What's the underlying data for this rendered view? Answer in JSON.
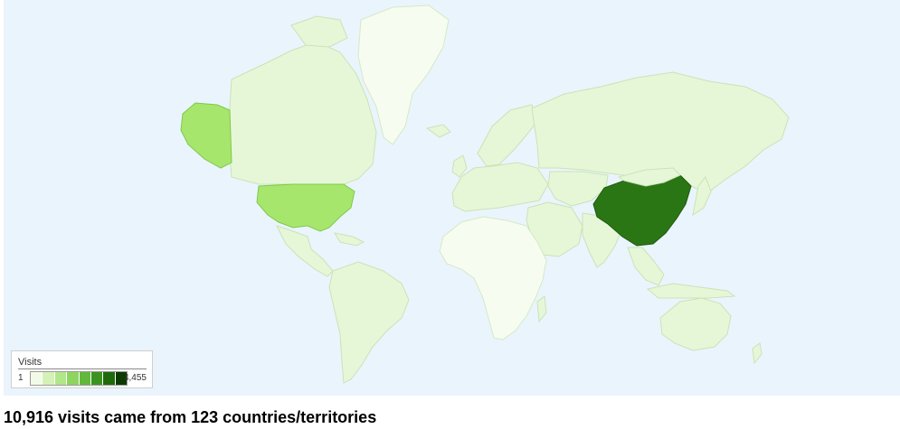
{
  "legend": {
    "title": "Visits",
    "min_label": "1",
    "max_label": "4,455",
    "colors": [
      "#f2fbe8",
      "#d4f2b8",
      "#b2e68a",
      "#8ed55f",
      "#62b83a",
      "#3b941f",
      "#1f6a0c",
      "#0c3a03"
    ]
  },
  "summary": "10,916 visits came from 123 countries/territories",
  "colors": {
    "ocean": "#eaf4fd",
    "low": "#f7fcf0",
    "base": "#e6f7d8",
    "mid": "#a7e66c",
    "high": "#2b7614"
  },
  "highlighted": [
    {
      "name": "China",
      "level": "high"
    },
    {
      "name": "United States",
      "level": "mid"
    }
  ]
}
